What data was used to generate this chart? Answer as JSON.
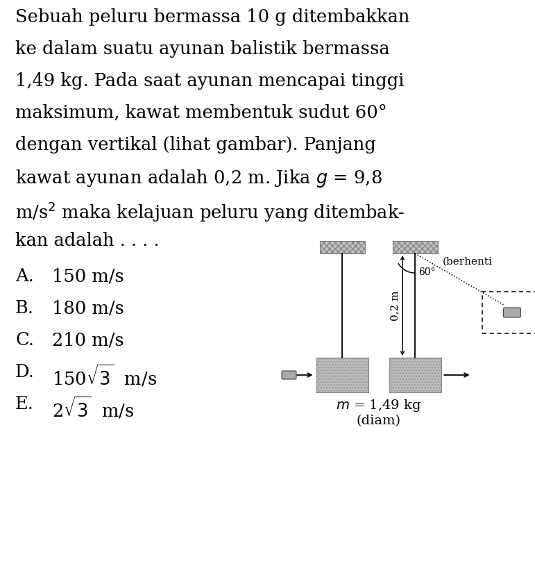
{
  "background_color": "#ffffff",
  "text_color": "#000000",
  "question_lines": [
    "Sebuah peluru bermassa 10 g ditembakkan",
    "ke dalam suatu ayunan balistik bermassa",
    "1,49 kg. Pada saat ayunan mencapai tinggi",
    "maksimum, kawat membentuk sudut 60°",
    "dengan vertikal (lihat gambar). Panjang",
    "kawat ayunan adalah 0,2 m. Jika $g$ = 9,8",
    "m/s$^2$ maka kelajuan peluru yang ditembak-",
    "kan adalah . . . ."
  ],
  "options": [
    [
      "A.",
      "150 m/s"
    ],
    [
      "B.",
      "180 m/s"
    ],
    [
      "C.",
      "210 m/s"
    ],
    [
      "D.",
      "150$\\sqrt{3}$  m/s"
    ],
    [
      "E.",
      "2$\\sqrt{3}$  m/s"
    ]
  ],
  "fig_width": 7.71,
  "fig_height": 8.15,
  "dpi": 100,
  "font_size_question": 18.5,
  "font_size_options": 18.5,
  "font_size_diagram": 11,
  "box_gray": "#aaaaaa",
  "box_edge": "#555555",
  "line_color": "#000000"
}
